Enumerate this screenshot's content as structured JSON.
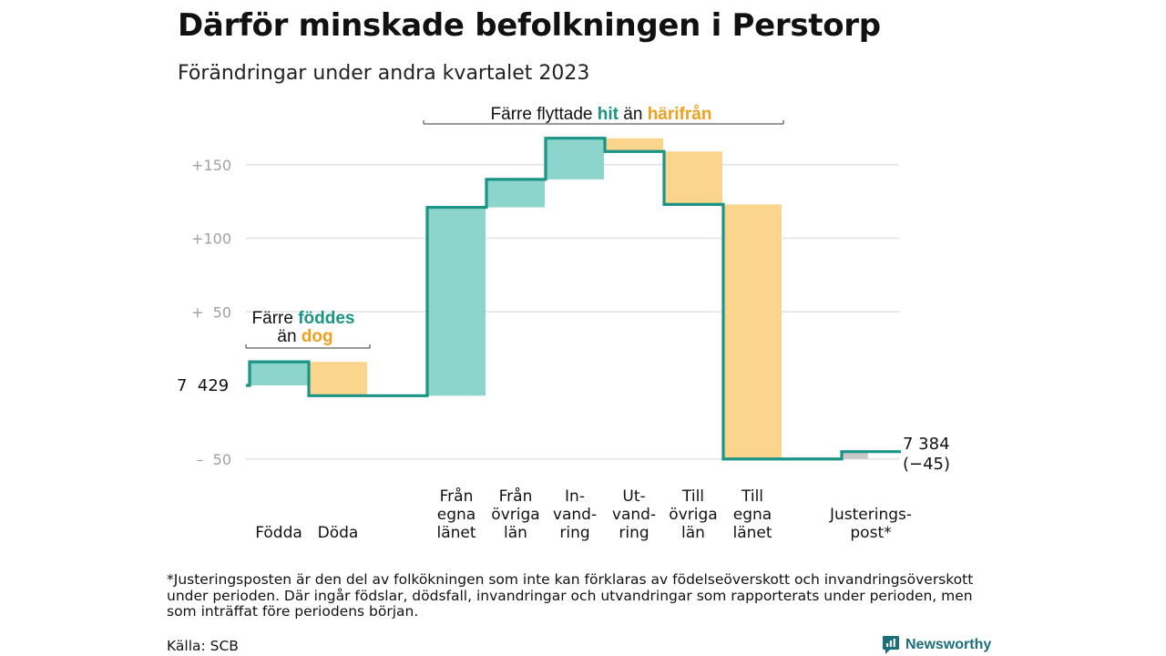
{
  "header": {
    "title": "Därför minskade befolkningen i Perstorp",
    "subtitle": "Förändringar under andra kvartalet 2023"
  },
  "annotations": {
    "births": {
      "line1_pre": "Färre ",
      "line1_hl": "föddes",
      "line2_pre": "än ",
      "line2_hl": "dog"
    },
    "migration": {
      "pre": "Färre flyttade ",
      "hl1": "hit",
      "mid": " än ",
      "hl2": "härifrån"
    }
  },
  "start_label": "7  429",
  "end_label": {
    "line1": "7 384",
    "line2": "(−45)"
  },
  "footnote": "*Justeringsposten är den del av folkökningen som inte kan förklaras av födelseöverskott och invandringsöverskott under perioden. Där ingår födslar, dödsfall, invandringar och utvandringar som rapporterats under perioden, men som inträffat före periodens början.",
  "source": "Källa: SCB",
  "brand": {
    "name": "Newsworthy",
    "color": "#1b6f78"
  },
  "colors": {
    "increase": "#8dd5cc",
    "decrease": "#fbd58d",
    "adjustment": "#c8c8c8",
    "line": "#1a9484",
    "teal_text": "#1a9484",
    "orange_text": "#f0a020",
    "grid": "#e2e2e2",
    "tick_text": "#a0a0a0"
  },
  "chart_data": {
    "type": "waterfall",
    "title": "Därför minskade befolkningen i Perstorp",
    "subtitle": "Förändringar under andra kvartalet 2023",
    "baseline": 7429,
    "end_value": 7384,
    "net_change": -45,
    "y_ticks": [
      {
        "value": 150,
        "label": "+150"
      },
      {
        "value": 100,
        "label": "+100"
      },
      {
        "value": 50,
        "label": "+  50"
      },
      {
        "value": -50,
        "label": "–  50"
      }
    ],
    "ylim": [
      -50,
      168
    ],
    "grid": true,
    "steps": [
      {
        "label": [
          "Födda"
        ],
        "change": 16,
        "kind": "increase"
      },
      {
        "label": [
          "Döda"
        ],
        "change": -23,
        "kind": "decrease"
      },
      {
        "label": [
          "",
          ""
        ],
        "change": 0,
        "kind": "none"
      },
      {
        "label": [
          "Från",
          "egna",
          "länet"
        ],
        "change": 128,
        "kind": "increase"
      },
      {
        "label": [
          "Från",
          "övriga",
          "län"
        ],
        "change": 19,
        "kind": "increase"
      },
      {
        "label": [
          "In-",
          "vand-",
          "ring"
        ],
        "change": 28,
        "kind": "increase"
      },
      {
        "label": [
          "Ut-",
          "vand-",
          "ring"
        ],
        "change": -9,
        "kind": "decrease"
      },
      {
        "label": [
          "Till",
          "övriga",
          "län"
        ],
        "change": -36,
        "kind": "decrease"
      },
      {
        "label": [
          "Till",
          "egna",
          "länet"
        ],
        "change": -173,
        "kind": "decrease"
      },
      {
        "label": [
          "",
          ""
        ],
        "change": 0,
        "kind": "none"
      },
      {
        "label": [
          "Justerings-",
          "post*"
        ],
        "change": 5,
        "kind": "adjustment"
      }
    ]
  }
}
